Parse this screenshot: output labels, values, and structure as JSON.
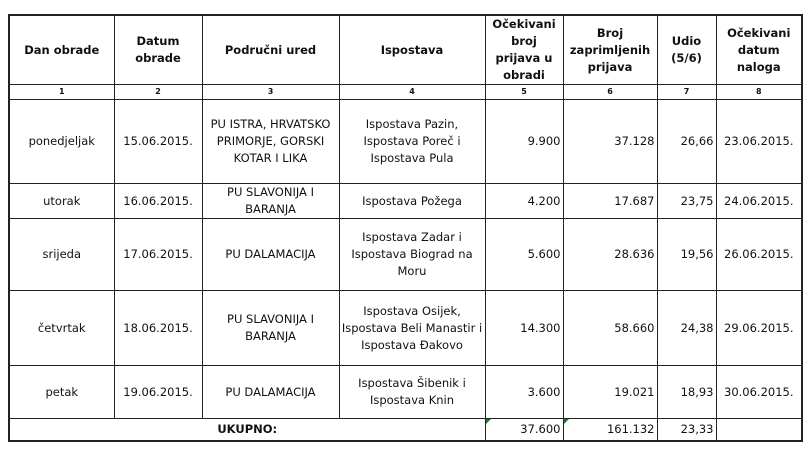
{
  "headers": [
    "Dan obrade",
    "Datum obrade",
    "Područni ured",
    "Ispostava",
    "Očekivani broj prijava u obradi",
    "Broj zaprimljenih prijava",
    "Udio (5/6)",
    "Očekivani datum naloga"
  ],
  "column_numbers": [
    "1",
    "2",
    "3",
    "4",
    "5",
    "6",
    "7",
    "8"
  ],
  "rows": [
    {
      "dan": "ponedjeljak",
      "datum": "15.06.2015.",
      "ured": "PU ISTRA, HRVATSKO PRIMORJE, GORSKI KOTAR I LIKA",
      "ispostava": "Ispostava Pazin, Ispostava Poreč i Ispostava Pula",
      "ocekivani": "9.900",
      "zaprimljeni": "37.128",
      "udio": "26,66",
      "datum_naloga": "23.06.2015."
    },
    {
      "dan": "utorak",
      "datum": "16.06.2015.",
      "ured": "PU SLAVONIJA I BARANJA",
      "ispostava": "Ispostava Požega",
      "ocekivani": "4.200",
      "zaprimljeni": "17.687",
      "udio": "23,75",
      "datum_naloga": "24.06.2015."
    },
    {
      "dan": "srijeda",
      "datum": "17.06.2015.",
      "ured": "PU DALAMACIJA",
      "ispostava": "Ispostava Zadar i Ispostava Biograd na Moru",
      "ocekivani": "5.600",
      "zaprimljeni": "28.636",
      "udio": "19,56",
      "datum_naloga": "26.06.2015."
    },
    {
      "dan": "četvrtak",
      "datum": "18.06.2015.",
      "ured": "PU SLAVONIJA I BARANJA",
      "ispostava": "Ispostava Osijek, Ispostava Beli Manastir i Ispostava Đakovo",
      "ocekivani": "14.300",
      "zaprimljeni": "58.660",
      "udio": "24,38",
      "datum_naloga": "29.06.2015."
    },
    {
      "dan": "petak",
      "datum": "19.06.2015.",
      "ured": "PU DALAMACIJA",
      "ispostava": "Ispostava Šibenik i Ispostava Knin",
      "ocekivani": "3.600",
      "zaprimljeni": "19.021",
      "udio": "18,93",
      "datum_naloga": "30.06.2015."
    }
  ],
  "total": {
    "label": "UKUPNO:",
    "ocekivani": "37.600",
    "zaprimljeni": "161.132",
    "udio": "23,33"
  }
}
